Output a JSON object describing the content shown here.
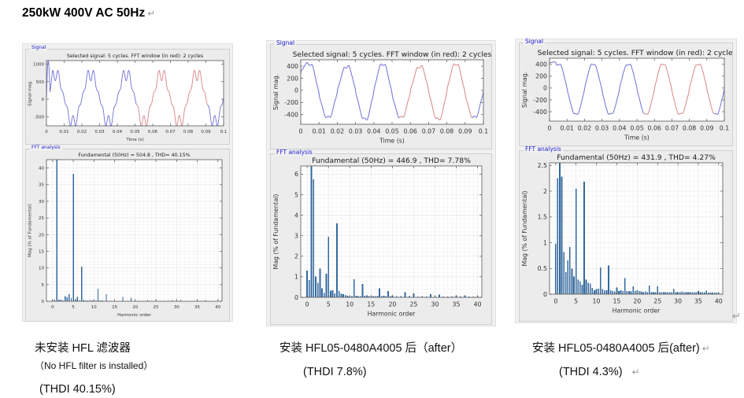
{
  "page": {
    "title": "250kW 400V AC 50Hz",
    "return_mark": "↵",
    "background": "#ffffff"
  },
  "colors": {
    "waveform_blue": "#6f6fd8",
    "waveform_red": "#d88585",
    "bar_blue": "#33689e",
    "panel_label_blue": "#2222cc",
    "window_bg": "#ececec",
    "plot_bg": "#ffffff",
    "axis": "#555555",
    "tick_text": "#333333",
    "grid_minor": "#f2f2f2",
    "grid_major": "#e3e3e3",
    "return_mark_gray": "#9a9a9a"
  },
  "panels": [
    {
      "signal_label": "Signal",
      "fft_label": "FFT analysis"
    },
    {
      "signal_label": "Signal",
      "fft_label": "FFT analysis"
    },
    {
      "signal_label": "Signal",
      "fft_label": "FFT analysis"
    }
  ],
  "captions": [
    {
      "line1": "未安装 HFL 滤波器",
      "line1_small": "（No HFL filter is installed）",
      "line2": "(THDI 40.15%)",
      "ret1": "",
      "ret2": ""
    },
    {
      "line1": "安装 HFL05-0480A4005 后（after）",
      "line1_small": "",
      "line2": "(THDI 7.8%)",
      "ret1": "",
      "ret2": ""
    },
    {
      "line1": "安装 HFL05-0480A4005 后(after)",
      "line1_small": "",
      "line2": "(THDI 4.3%)",
      "ret1": "↵",
      "ret2": "↵"
    }
  ],
  "chart_data": [
    {
      "panel": 1,
      "role": "signal",
      "type": "line",
      "title": "Selected signal: 5 cycles. FFT window (in red): 2 cycles",
      "xlabel": "Time (s)",
      "ylabel": "Signal mag.",
      "xlim": [
        0,
        0.1
      ],
      "xticks": [
        0,
        0.01,
        0.02,
        0.03,
        0.04,
        0.05,
        0.06,
        0.07,
        0.08,
        0.09,
        0.1
      ],
      "ylim": [
        -760,
        1100
      ],
      "yticks": [
        -500,
        0,
        500,
        1000
      ],
      "fft_window": [
        0.051,
        0.091
      ],
      "fundamental_hz": 50,
      "waveform": {
        "form": "six_pulse",
        "peak": 776,
        "dip": 497,
        "dc": 30,
        "startup_peak": 1000
      }
    },
    {
      "panel": 1,
      "role": "fft",
      "type": "bar",
      "title": "Fundamental (50Hz) = 504.8 , THD= 40.15%",
      "xlabel": "Harmonic order",
      "ylabel": "Mag (% of Fundamental)",
      "xlim": [
        -1.5,
        41
      ],
      "xticks": [
        0,
        5,
        10,
        15,
        20,
        25,
        30,
        35,
        40
      ],
      "ylim": [
        0,
        42.5
      ],
      "yticks": [
        0,
        5,
        10,
        15,
        20,
        25,
        30,
        35,
        40
      ],
      "grid_y_minor": 1,
      "fundamental_value": 504.8,
      "thd_percent": 40.15,
      "bars": [
        [
          0,
          0.4
        ],
        [
          0.5,
          0.45
        ],
        [
          1,
          100
        ],
        [
          1.5,
          0.5
        ],
        [
          2,
          0.45
        ],
        [
          2.5,
          0.4
        ],
        [
          3,
          1.5
        ],
        [
          3.5,
          1.2
        ],
        [
          4,
          2.1
        ],
        [
          4.5,
          1.0
        ],
        [
          5,
          38.3
        ],
        [
          5.5,
          0.6
        ],
        [
          6,
          1.3
        ],
        [
          6.5,
          0.3
        ],
        [
          7,
          10.4
        ],
        [
          7.5,
          0.35
        ],
        [
          8,
          0.25
        ],
        [
          8.5,
          0.2
        ],
        [
          9,
          0.3
        ],
        [
          9.5,
          0.2
        ],
        [
          10,
          0.25
        ],
        [
          10.5,
          0.2
        ],
        [
          11,
          3.8
        ],
        [
          11.5,
          0.2
        ],
        [
          12,
          0.2
        ],
        [
          12.5,
          0.15
        ],
        [
          13,
          2.1
        ],
        [
          13.5,
          0.15
        ],
        [
          14,
          0.15
        ],
        [
          15,
          0.15
        ],
        [
          16,
          0.15
        ],
        [
          17,
          1.3
        ],
        [
          18,
          0.1
        ],
        [
          19,
          1.1
        ],
        [
          20,
          0.1
        ],
        [
          21,
          0.1
        ],
        [
          22,
          0.1
        ],
        [
          23,
          0.4
        ],
        [
          24,
          0.1
        ],
        [
          25,
          0.6
        ],
        [
          26,
          0.08
        ],
        [
          27,
          0.08
        ],
        [
          28,
          0.08
        ],
        [
          29,
          0.3
        ],
        [
          30,
          0.08
        ],
        [
          31,
          0.3
        ],
        [
          32,
          0.06
        ],
        [
          33,
          0.06
        ],
        [
          34,
          0.06
        ],
        [
          35,
          0.2
        ],
        [
          36,
          0.06
        ],
        [
          37,
          0.3
        ],
        [
          38,
          0.05
        ],
        [
          39,
          0.05
        ],
        [
          40,
          0.05
        ]
      ]
    },
    {
      "panel": 2,
      "role": "signal",
      "type": "line",
      "title": "Selected signal: 5 cycles. FFT window (in red): 2 cycles",
      "xlabel": "Time (s)",
      "ylabel": "Signal mag.",
      "xlim": [
        0,
        0.1
      ],
      "xticks": [
        0,
        0.01,
        0.02,
        0.03,
        0.04,
        0.05,
        0.06,
        0.07,
        0.08,
        0.09,
        0.1
      ],
      "ylim": [
        -560,
        505
      ],
      "yticks": [
        -400,
        -200,
        0,
        200,
        400
      ],
      "fft_window": [
        0.054,
        0.094
      ],
      "fundamental_hz": 50,
      "waveform": {
        "form": "harmonic_sum",
        "peak": 446.9,
        "dc": -25,
        "start_value": 300,
        "start_tau": 0.004,
        "harmonics": [
          {
            "n": 1,
            "pct": 100,
            "deg": 0
          },
          {
            "n": 0.5,
            "pct": 0.85,
            "deg": 90
          },
          {
            "n": 1.5,
            "pct": 5.75,
            "deg": 0
          },
          {
            "n": 3,
            "pct": 1.4,
            "deg": 90
          },
          {
            "n": 5,
            "pct": 2.95,
            "deg": 180
          },
          {
            "n": 7,
            "pct": 3.6,
            "deg": 0
          },
          {
            "n": 11,
            "pct": 0.88,
            "deg": 0
          },
          {
            "n": 13,
            "pct": 0.65,
            "deg": 0
          }
        ]
      }
    },
    {
      "panel": 2,
      "role": "fft",
      "type": "bar",
      "title": "Fundamental (50Hz) = 446.9 , THD= 7.78%",
      "xlabel": "Harmonic order",
      "ylabel": "Mag (% of Fundamental)",
      "xlim": [
        -1.5,
        41
      ],
      "xticks": [
        0,
        5,
        10,
        15,
        20,
        25,
        30,
        35,
        40
      ],
      "ylim": [
        0,
        6.4
      ],
      "yticks": [
        0,
        1,
        2,
        3,
        4,
        5,
        6
      ],
      "grid_y_minor": 0.2,
      "fundamental_value": 446.9,
      "thd_percent": 7.78,
      "bars": [
        [
          0,
          1.3
        ],
        [
          0.5,
          0.85
        ],
        [
          1,
          100
        ],
        [
          1.5,
          5.75
        ],
        [
          2,
          1.02
        ],
        [
          2.5,
          0.7
        ],
        [
          3,
          1.4
        ],
        [
          3.5,
          0.45
        ],
        [
          4,
          0.22
        ],
        [
          4.5,
          1.15
        ],
        [
          5,
          2.95
        ],
        [
          5.5,
          0.32
        ],
        [
          6,
          0.35
        ],
        [
          6.5,
          0.2
        ],
        [
          7,
          3.6
        ],
        [
          7.5,
          0.3
        ],
        [
          8,
          0.17
        ],
        [
          8.5,
          0.15
        ],
        [
          9,
          0.12
        ],
        [
          9.5,
          0.08
        ],
        [
          10,
          0.06
        ],
        [
          10.5,
          0.06
        ],
        [
          11,
          0.88
        ],
        [
          11.5,
          0.08
        ],
        [
          12,
          0.06
        ],
        [
          12.5,
          0.06
        ],
        [
          13,
          0.65
        ],
        [
          13.5,
          0.07
        ],
        [
          14,
          0.1
        ],
        [
          14.5,
          0.05
        ],
        [
          15,
          0.06
        ],
        [
          15.5,
          0.05
        ],
        [
          16,
          0.06
        ],
        [
          16.5,
          0.05
        ],
        [
          17,
          0.45
        ],
        [
          17.5,
          0.05
        ],
        [
          18,
          0.07
        ],
        [
          18.5,
          0.05
        ],
        [
          19,
          0.3
        ],
        [
          19.5,
          0.05
        ],
        [
          20,
          0.08
        ],
        [
          21,
          0.06
        ],
        [
          22,
          0.06
        ],
        [
          23,
          0.25
        ],
        [
          24,
          0.05
        ],
        [
          25,
          0.2
        ],
        [
          26,
          0.04
        ],
        [
          27,
          0.05
        ],
        [
          28,
          0.04
        ],
        [
          29,
          0.15
        ],
        [
          30,
          0.04
        ],
        [
          31,
          0.13
        ],
        [
          32,
          0.04
        ],
        [
          33,
          0.04
        ],
        [
          34,
          0.04
        ],
        [
          35,
          0.08
        ],
        [
          36,
          0.04
        ],
        [
          37,
          0.1
        ],
        [
          38,
          0.03
        ],
        [
          39,
          0.03
        ],
        [
          40,
          0.03
        ]
      ]
    },
    {
      "panel": 3,
      "role": "signal",
      "type": "line",
      "title": "Selected signal: 5 cycles. FFT window (in red): 2 cycles",
      "xlabel": "Time (s)",
      "ylabel": "Signal mag.",
      "xlim": [
        0,
        0.1
      ],
      "xticks": [
        0,
        0.01,
        0.02,
        0.03,
        0.04,
        0.05,
        0.06,
        0.07,
        0.08,
        0.09,
        0.1
      ],
      "ylim": [
        -560,
        505
      ],
      "yticks": [
        -400,
        -200,
        0,
        200,
        400
      ],
      "fft_window": [
        0.054,
        0.094
      ],
      "fundamental_hz": 50,
      "waveform": {
        "form": "harmonic_sum",
        "peak": 431.9,
        "dc": -20,
        "start_value": 430,
        "start_tau": 0.004,
        "harmonics": [
          {
            "n": 1,
            "pct": 100,
            "deg": 0
          },
          {
            "n": 0.5,
            "pct": 2.25,
            "deg": 0
          },
          {
            "n": 1.5,
            "pct": 2.28,
            "deg": 180
          },
          {
            "n": 3.5,
            "pct": 0.92,
            "deg": 0
          },
          {
            "n": 5,
            "pct": 2.05,
            "deg": 180
          },
          {
            "n": 7,
            "pct": 2.18,
            "deg": 0
          },
          {
            "n": 11,
            "pct": 0.52,
            "deg": 0
          },
          {
            "n": 13,
            "pct": 0.56,
            "deg": 0
          }
        ]
      }
    },
    {
      "panel": 3,
      "role": "fft",
      "type": "bar",
      "title": "Fundamental (50Hz) = 431.9 , THD= 4.27%",
      "xlabel": "Harmonic order",
      "ylabel": "Mag (% of Fundamental)",
      "xlim": [
        -1.5,
        41
      ],
      "xticks": [
        0,
        5,
        10,
        15,
        20,
        25,
        30,
        35,
        40
      ],
      "ylim": [
        0,
        2.55
      ],
      "yticks": [
        0,
        0.5,
        1,
        1.5,
        2,
        2.5
      ],
      "grid_y_minor": 0.1,
      "fundamental_value": 431.9,
      "thd_percent": 4.27,
      "bars": [
        [
          0,
          0.98
        ],
        [
          0.5,
          2.25
        ],
        [
          1,
          100
        ],
        [
          1.5,
          2.28
        ],
        [
          2,
          0.82
        ],
        [
          2.5,
          0.43
        ],
        [
          3,
          0.66
        ],
        [
          3.5,
          0.92
        ],
        [
          4,
          0.5
        ],
        [
          4.5,
          0.34
        ],
        [
          5,
          2.05
        ],
        [
          5.5,
          0.28
        ],
        [
          6,
          0.25
        ],
        [
          6.5,
          0.18
        ],
        [
          7,
          2.18
        ],
        [
          7.5,
          0.28
        ],
        [
          8,
          0.22
        ],
        [
          8.5,
          0.21
        ],
        [
          9,
          0.12
        ],
        [
          9.5,
          0.08
        ],
        [
          10,
          0.1
        ],
        [
          10.5,
          0.11
        ],
        [
          11,
          0.52
        ],
        [
          11.5,
          0.1
        ],
        [
          12,
          0.08
        ],
        [
          12.5,
          0.08
        ],
        [
          13,
          0.56
        ],
        [
          13.5,
          0.08
        ],
        [
          14,
          0.06
        ],
        [
          14.5,
          0.05
        ],
        [
          15,
          0.13
        ],
        [
          15.5,
          0.06
        ],
        [
          16,
          0.08
        ],
        [
          16.5,
          0.06
        ],
        [
          17,
          0.31
        ],
        [
          17.5,
          0.06
        ],
        [
          18,
          0.06
        ],
        [
          18.5,
          0.05
        ],
        [
          19,
          0.15
        ],
        [
          19.5,
          0.06
        ],
        [
          20,
          0.08
        ],
        [
          20.5,
          0.06
        ],
        [
          21,
          0.05
        ],
        [
          21.5,
          0.04
        ],
        [
          22,
          0.05
        ],
        [
          22.5,
          0.04
        ],
        [
          23,
          0.17
        ],
        [
          23.5,
          0.04
        ],
        [
          24,
          0.04
        ],
        [
          24.5,
          0.04
        ],
        [
          25,
          0.15
        ],
        [
          25.5,
          0.04
        ],
        [
          26,
          0.04
        ],
        [
          26.5,
          0.04
        ],
        [
          27,
          0.04
        ],
        [
          27.5,
          0.04
        ],
        [
          28,
          0.04
        ],
        [
          28.5,
          0.04
        ],
        [
          29,
          0.1
        ],
        [
          29.5,
          0.04
        ],
        [
          30,
          0.04
        ],
        [
          30.5,
          0.04
        ],
        [
          31,
          0.05
        ],
        [
          31.5,
          0.04
        ],
        [
          32,
          0.04
        ],
        [
          32.5,
          0.04
        ],
        [
          33,
          0.04
        ],
        [
          33.5,
          0.04
        ],
        [
          34,
          0.04
        ],
        [
          34.5,
          0.04
        ],
        [
          35,
          0.06
        ],
        [
          35.5,
          0.04
        ],
        [
          36,
          0.04
        ],
        [
          36.5,
          0.04
        ],
        [
          37,
          0.07
        ],
        [
          37.5,
          0.03
        ],
        [
          38,
          0.03
        ],
        [
          38.5,
          0.03
        ],
        [
          39,
          0.03
        ],
        [
          39.5,
          0.03
        ],
        [
          40,
          0.03
        ]
      ]
    }
  ]
}
